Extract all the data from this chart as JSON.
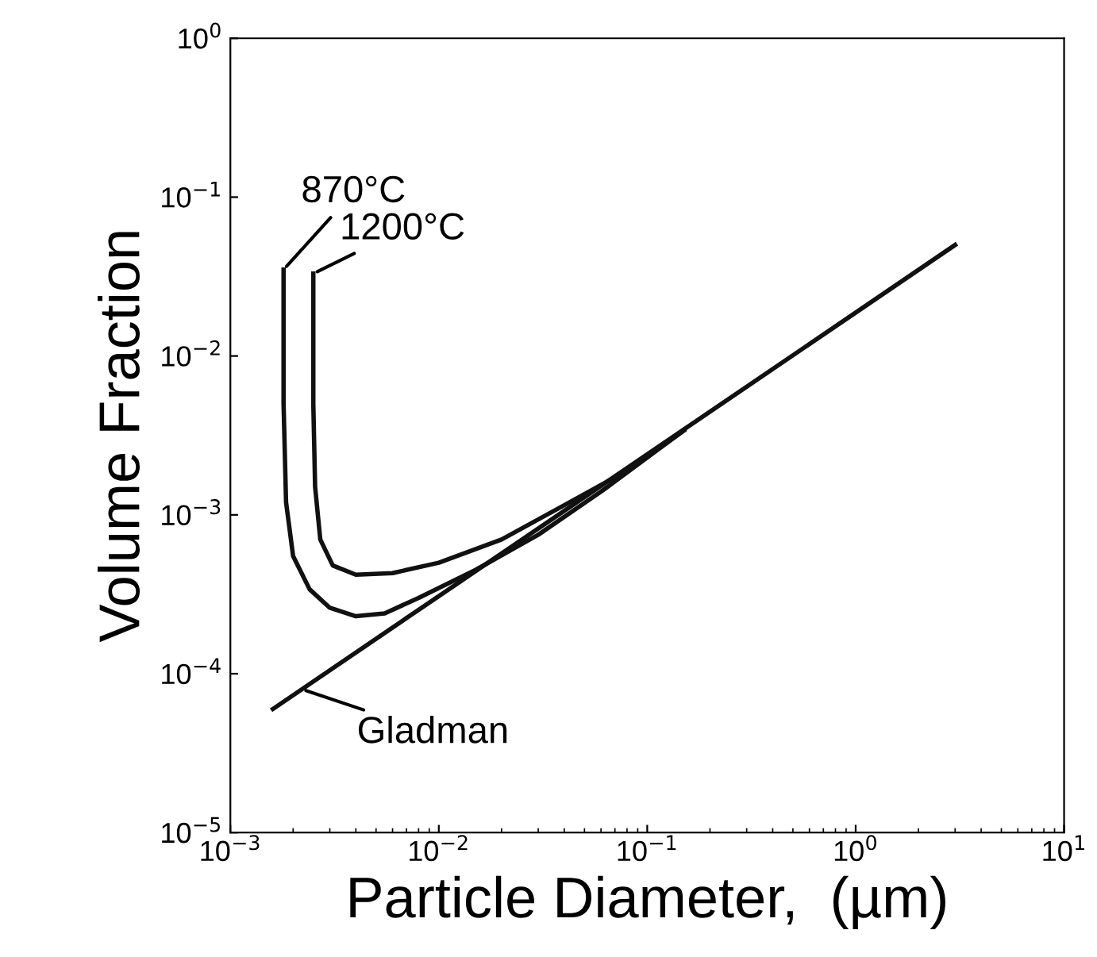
{
  "chart_data": {
    "type": "line",
    "xlabel": "Particle Diameter,  (µm)",
    "ylabel": "Volume Fraction",
    "log": "xy",
    "xlim": [
      0.001,
      10
    ],
    "ylim": [
      1e-05,
      1
    ],
    "xticks": [
      {
        "value": 0.001,
        "label": "10$^{−3}$"
      },
      {
        "value": 0.01,
        "label": "10$^{−2}$"
      },
      {
        "value": 0.1,
        "label": "10$^{−1}$"
      },
      {
        "value": 1,
        "label": "10$^{0}$"
      },
      {
        "value": 10,
        "label": "10$^{1}$"
      }
    ],
    "yticks": [
      {
        "value": 1e-05,
        "label": "10$^{−5}$"
      },
      {
        "value": 0.0001,
        "label": "10$^{−4}$"
      },
      {
        "value": 0.001,
        "label": "10$^{−3}$"
      },
      {
        "value": 0.01,
        "label": "10$^{−2}$"
      },
      {
        "value": 0.1,
        "label": "10$^{−1}$"
      },
      {
        "value": 1,
        "label": "10$^{0}$"
      }
    ],
    "grid": false,
    "marker": "none",
    "line_style": "solid",
    "series": [
      {
        "color": "#111111",
        "x": [
          0.0018,
          0.0018,
          0.00185,
          0.002,
          0.0024,
          0.003,
          0.004,
          0.0055,
          0.008,
          0.015,
          0.03,
          0.06,
          0.1,
          0.15
        ],
        "values": [
          0.035,
          0.005,
          0.0012,
          0.00055,
          0.00034,
          0.00026,
          0.00023,
          0.00024,
          0.0003,
          0.00045,
          0.00075,
          0.0014,
          0.0023,
          0.0034
        ]
      },
      {
        "color": "#111111",
        "x": [
          0.0025,
          0.0025,
          0.00255,
          0.0027,
          0.0031,
          0.004,
          0.006,
          0.01,
          0.02,
          0.04,
          0.08,
          0.15
        ],
        "values": [
          0.033,
          0.005,
          0.0015,
          0.0007,
          0.00048,
          0.00042,
          0.00043,
          0.0005,
          0.0007,
          0.00115,
          0.0019,
          0.0034
        ]
      },
      {
        "color": "#111111",
        "x": [
          0.0016,
          3
        ],
        "values": [
          6e-05,
          0.05
        ]
      }
    ],
    "annotations": [
      {
        "text": "870°C",
        "x": 0.0018,
        "y": 0.035
      },
      {
        "text": "1200°C",
        "x": 0.0025,
        "y": 0.033
      },
      {
        "text": "Gladman",
        "x": 0.0022,
        "y": 8e-05
      }
    ]
  }
}
